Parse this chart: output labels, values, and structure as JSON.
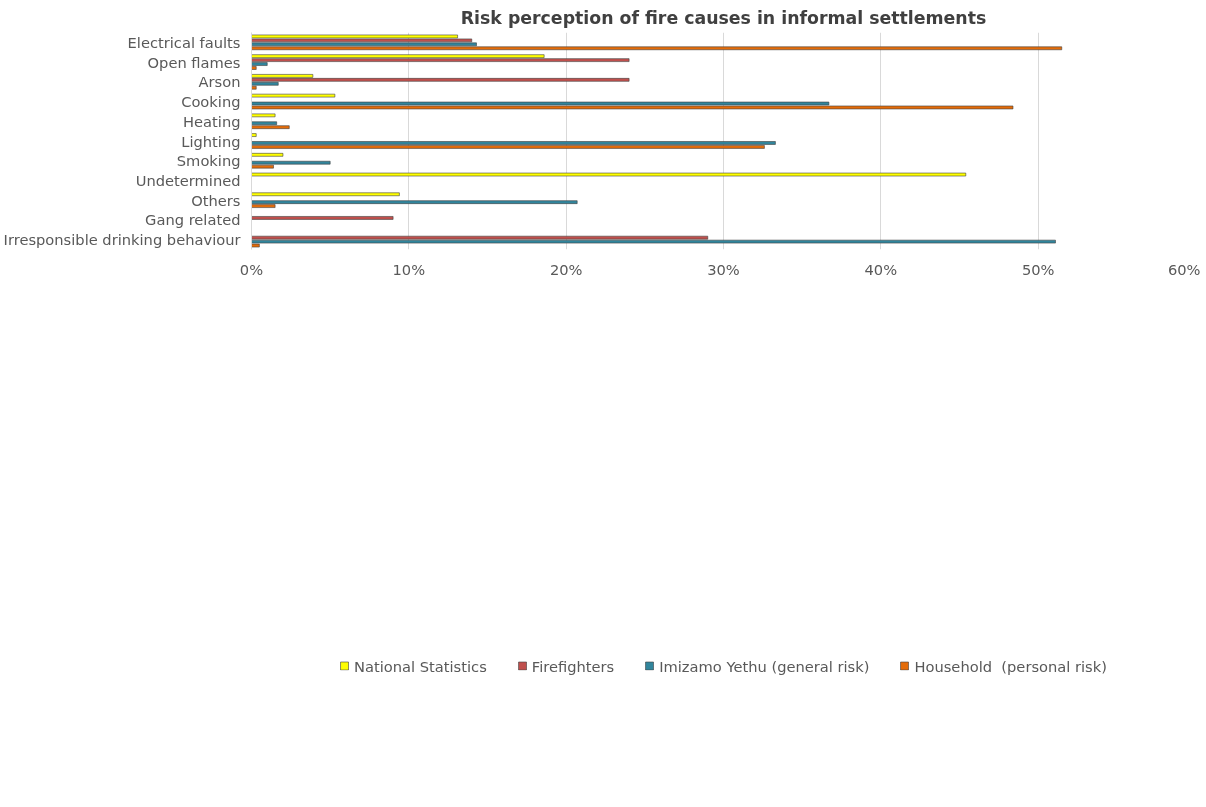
{
  "chart_data": {
    "type": "bar",
    "orientation": "horizontal",
    "title": "Risk perception of fire causes in informal settlements",
    "categories": [
      "Electrical faults",
      "Open flames",
      "Arson",
      "Cooking",
      "Heating",
      "Lighting",
      "Smoking",
      "Undetermined",
      "Others",
      "Gang related",
      "Irresponsible drinking behaviour"
    ],
    "series": [
      {
        "name": "National Statistics",
        "color": "#ffff00",
        "values": [
          13.1,
          18.6,
          3.9,
          5.3,
          1.5,
          0.3,
          2.0,
          45.4,
          9.4,
          null,
          null
        ]
      },
      {
        "name": "Firefighters",
        "color": "#c0504d",
        "values": [
          14.0,
          24.0,
          24.0,
          null,
          null,
          null,
          null,
          null,
          null,
          9.0,
          29.0
        ]
      },
      {
        "name": "Imizamo Yethu (general risk)",
        "color": "#31859c",
        "values": [
          14.3,
          1.0,
          1.7,
          36.7,
          1.6,
          33.3,
          5.0,
          null,
          20.7,
          null,
          51.1
        ]
      },
      {
        "name": "Household  (personal risk)",
        "color": "#e46c0a",
        "values": [
          51.5,
          0.3,
          0.3,
          48.4,
          2.4,
          32.6,
          1.4,
          null,
          1.5,
          null,
          0.5
        ]
      }
    ],
    "xlim": [
      0,
      60
    ],
    "xticks": [
      {
        "value": 0,
        "label": "0%"
      },
      {
        "value": 10,
        "label": "10%"
      },
      {
        "value": 20,
        "label": "20%"
      },
      {
        "value": 30,
        "label": "30%"
      },
      {
        "value": 40,
        "label": "40%"
      },
      {
        "value": 50,
        "label": "50%"
      },
      {
        "value": 60,
        "label": "60%"
      }
    ],
    "grid": "x",
    "legend": "bottom"
  }
}
